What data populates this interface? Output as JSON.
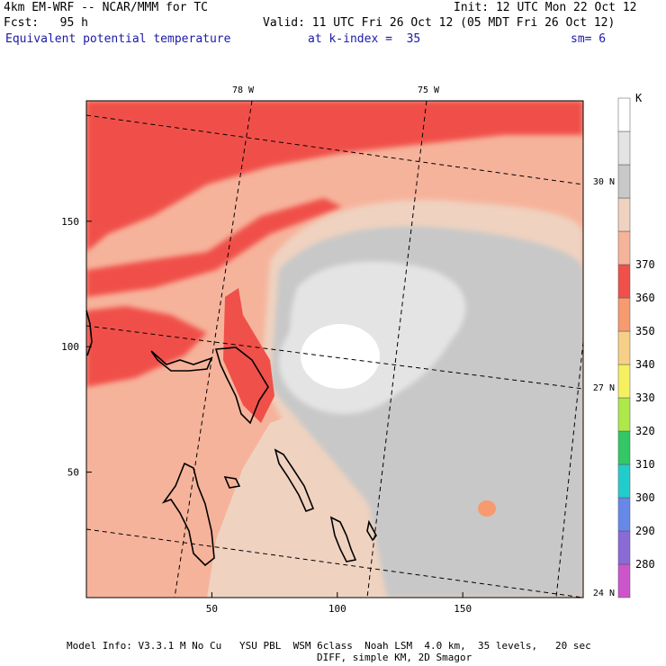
{
  "header": {
    "model_line": "4km EM-WRF -- NCAR/MMM for TC",
    "init_line": "Init: 12 UTC Mon 22 Oct 12",
    "fcst_line": "Fcst:   95 h",
    "valid_line": "Valid: 11 UTC Fri 26 Oct 12 (05 MDT Fri 26 Oct 12)",
    "field_name": "Equivalent potential temperature",
    "level_label": "at k-index =  35",
    "smoothing_label": "sm= 6"
  },
  "footer": {
    "line1": "Model Info: V3.3.1 M No Cu   YSU PBL  WSM 6class  Noah LSM  4.0 km,  35 levels,   20 sec",
    "line2": "DIFF, simple KM, 2D Smagor"
  },
  "colors": {
    "c280": "#cc55cc",
    "c290": "#8a6ad6",
    "c300": "#6688e8",
    "c310": "#22cccc",
    "c320": "#33c766",
    "c330": "#aee84a",
    "c340": "#f5f060",
    "c350": "#f7d088",
    "c360": "#f79a70",
    "c370": "#f0504a",
    "c380": "#f6b39b",
    "c390": "#efd2c0",
    "c400": "#c8c8c8",
    "c410": "#e4e4e4",
    "c420": "#ffffff"
  },
  "chart_data": {
    "type": "heatmap",
    "title": "Equivalent potential temperature",
    "units": "K",
    "x_ticks": [
      50,
      100,
      150
    ],
    "y_ticks": [
      50,
      100,
      150
    ],
    "xlim": [
      0,
      198
    ],
    "ylim": [
      0,
      198
    ],
    "lon_labels": [
      "78 W",
      "75 W"
    ],
    "lat_labels": [
      "30 N",
      "27 N",
      "24 N"
    ],
    "colorbar": {
      "unit_label": "K",
      "labels": [
        "280",
        "290",
        "300",
        "310",
        "320",
        "330",
        "340",
        "350",
        "360",
        "370"
      ]
    },
    "storm_center": [
      103,
      98
    ]
  }
}
